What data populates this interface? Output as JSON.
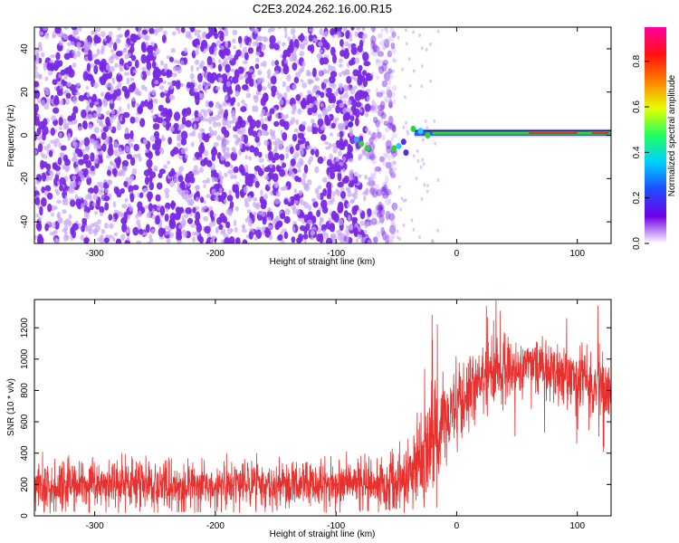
{
  "title": "C2E3.2024.262.16.00.R15",
  "colors": {
    "snr_trace": "#e8302e",
    "point_purple": "#7a28e6",
    "point_light": "#c7a6f5",
    "signal_core": "#30d040",
    "signal_hot": "#e03020",
    "frame": "#000000"
  },
  "chart_data": [
    {
      "type": "heatmap",
      "name": "spectrogram",
      "xlabel": "Height of straight line (km)",
      "ylabel": "Frequency (Hz)",
      "xlim": [
        -350,
        128
      ],
      "ylim": [
        -50,
        50
      ],
      "x_ticks": [
        -300,
        -200,
        -100,
        0,
        100
      ],
      "y_ticks": [
        -40,
        -20,
        0,
        20,
        40
      ],
      "noise_region_x": [
        -350,
        -57
      ],
      "signal_line": {
        "x_range": [
          -35,
          128
        ],
        "frequency": 1
      },
      "colorbar": {
        "label": "Normalized spectral amplitude",
        "range": [
          0.0,
          0.95
        ],
        "ticks": [
          0.0,
          0.2,
          0.4,
          0.6,
          0.8
        ],
        "colormap": [
          "#ffffff",
          "#7000e8",
          "#1f4cff",
          "#00d0ff",
          "#20ff60",
          "#e8ff00",
          "#ff8000",
          "#ff1010",
          "#ff00a0"
        ]
      },
      "grid": false
    },
    {
      "type": "line",
      "name": "snr",
      "xlabel": "Height of straight line (km)",
      "ylabel": "SNR (10 * v/v)",
      "xlim": [
        -350,
        128
      ],
      "ylim": [
        0,
        1380
      ],
      "x_ticks": [
        -300,
        -200,
        -100,
        0,
        100
      ],
      "y_ticks": [
        0,
        200,
        400,
        600,
        800,
        1000,
        1200
      ],
      "envelope": {
        "x": [
          -350,
          -300,
          -250,
          -200,
          -150,
          -100,
          -60,
          -50,
          -40,
          -30,
          -20,
          -10,
          0,
          10,
          20,
          30,
          40,
          50,
          60,
          70,
          80,
          90,
          100,
          110,
          120,
          128
        ],
        "mean": [
          200,
          200,
          195,
          195,
          195,
          200,
          210,
          230,
          260,
          360,
          480,
          600,
          700,
          790,
          860,
          900,
          930,
          950,
          950,
          940,
          920,
          900,
          880,
          860,
          850,
          840
        ],
        "low": [
          30,
          30,
          30,
          30,
          30,
          30,
          40,
          60,
          120,
          200,
          280,
          380,
          480,
          560,
          620,
          680,
          720,
          760,
          760,
          760,
          740,
          730,
          720,
          700,
          680,
          670
        ],
        "high": [
          330,
          330,
          320,
          320,
          330,
          330,
          340,
          380,
          620,
          900,
          1100,
          1050,
          1050,
          1080,
          1120,
          1150,
          1180,
          1180,
          1170,
          1160,
          1150,
          1140,
          1130,
          1120,
          1120,
          1100
        ]
      },
      "grid": false
    }
  ]
}
